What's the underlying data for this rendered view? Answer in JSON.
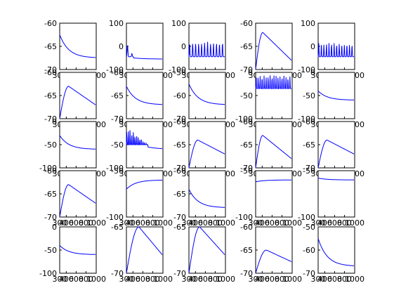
{
  "figure": {
    "background": "#ffffff",
    "line_color": "#0000ff",
    "rows": 5,
    "cols": 5
  },
  "chart_data": [
    {
      "type": "line",
      "shape": "decay",
      "params": [
        -62.5,
        -67.5
      ],
      "ylim": [
        -70,
        -60
      ],
      "yticks": [
        "-60",
        "-65",
        "-70"
      ]
    },
    {
      "type": "line",
      "shape": "spikes",
      "params": [
        -45,
        20,
        8,
        0.2
      ],
      "ylim": [
        -100,
        100
      ],
      "yticks": [
        "100",
        "0",
        "-100"
      ]
    },
    {
      "type": "line",
      "shape": "spikes",
      "params": [
        -45,
        20,
        12,
        0.0
      ],
      "ylim": [
        -100,
        100
      ],
      "yticks": [
        "100",
        "0",
        "-100"
      ]
    },
    {
      "type": "line",
      "shape": "hump",
      "params": [
        -70,
        -62,
        -68,
        0.2
      ],
      "ylim": [
        -70,
        -60
      ],
      "yticks": [
        "-60",
        "-65",
        "-70"
      ]
    },
    {
      "type": "line",
      "shape": "spikes",
      "params": [
        -45,
        15,
        14,
        0.0
      ],
      "ylim": [
        -100,
        100
      ],
      "yticks": [
        "100",
        "0",
        "-100"
      ]
    },
    {
      "type": "line",
      "shape": "hump",
      "params": [
        -70,
        -63,
        -67,
        0.25
      ],
      "ylim": [
        -70,
        -60
      ],
      "yticks": [
        "-60",
        "-65",
        "-70"
      ]
    },
    {
      "type": "line",
      "shape": "decay",
      "params": [
        -63,
        -67
      ],
      "ylim": [
        -70,
        -60
      ],
      "yticks": [
        "-60",
        "-65",
        "-70"
      ]
    },
    {
      "type": "line",
      "shape": "decay",
      "params": [
        -55,
        -64
      ],
      "ylim": [
        -70,
        -50
      ],
      "yticks": [
        "-50",
        "-60",
        "-70"
      ]
    },
    {
      "type": "line",
      "shape": "spikes",
      "params": [
        -35,
        -5,
        18,
        1.0
      ],
      "ylim": [
        -100,
        0
      ],
      "yticks": [
        "0",
        "-50",
        "-100"
      ]
    },
    {
      "type": "line",
      "shape": "decay",
      "params": [
        -40,
        -60
      ],
      "ylim": [
        -100,
        0
      ],
      "yticks": [
        "0",
        "-50",
        "-100"
      ]
    },
    {
      "type": "line",
      "shape": "decay",
      "params": [
        -30,
        -60
      ],
      "ylim": [
        -100,
        0
      ],
      "yticks": [
        "0",
        "-50",
        "-100"
      ]
    },
    {
      "type": "line",
      "shape": "spikes",
      "params": [
        -50,
        -10,
        22,
        0.6
      ],
      "ylim": [
        -100,
        0
      ],
      "yticks": [
        "0",
        "-50",
        "-100"
      ]
    },
    {
      "type": "line",
      "shape": "hump",
      "params": [
        -70,
        -64,
        -67,
        0.25
      ],
      "ylim": [
        -70,
        -60
      ],
      "yticks": [
        "-60",
        "-65",
        "-70"
      ]
    },
    {
      "type": "line",
      "shape": "hump",
      "params": [
        -70,
        -63,
        -68,
        0.2
      ],
      "ylim": [
        -70,
        -60
      ],
      "yticks": [
        "-60",
        "-65",
        "-70"
      ]
    },
    {
      "type": "line",
      "shape": "hump",
      "params": [
        -70,
        -64,
        -67,
        0.25
      ],
      "ylim": [
        -70,
        -60
      ],
      "yticks": [
        "-60",
        "-65",
        "-70"
      ]
    },
    {
      "type": "line",
      "shape": "hump",
      "params": [
        -70,
        -63,
        -67,
        0.25
      ],
      "ylim": [
        -70,
        -60
      ],
      "yticks": [
        "-60",
        "-65",
        "-70"
      ]
    },
    {
      "type": "line",
      "shape": "decay",
      "params": [
        -70,
        -60
      ],
      "ylim": [
        -100,
        -50
      ],
      "yticks": [
        "-50",
        "-100"
      ]
    },
    {
      "type": "line",
      "shape": "decay",
      "params": [
        -64,
        -68
      ],
      "ylim": [
        -70,
        -60
      ],
      "yticks": [
        "-60",
        "-65",
        "-70"
      ]
    },
    {
      "type": "line",
      "shape": "decay",
      "params": [
        -62,
        -60
      ],
      "ylim": [
        -100,
        -50
      ],
      "yticks": [
        "-50",
        "-100"
      ]
    },
    {
      "type": "line",
      "shape": "decay",
      "params": [
        -58,
        -60
      ],
      "ylim": [
        -100,
        -50
      ],
      "yticks": [
        "-50",
        "-100"
      ]
    },
    {
      "type": "line",
      "shape": "decay",
      "params": [
        -40,
        -60
      ],
      "ylim": [
        -100,
        0
      ],
      "yticks": [
        "0",
        "-50",
        "-100"
      ]
    },
    {
      "type": "line",
      "shape": "hump",
      "params": [
        -70,
        -65,
        -68,
        0.35
      ],
      "ylim": [
        -70,
        -65
      ],
      "yticks": [
        "-65",
        "-70"
      ]
    },
    {
      "type": "line",
      "shape": "hump",
      "params": [
        -70,
        -65,
        -68,
        0.3
      ],
      "ylim": [
        -70,
        -65
      ],
      "yticks": [
        "-65",
        "-70"
      ]
    },
    {
      "type": "line",
      "shape": "hump",
      "params": [
        -70,
        -65,
        -67.5,
        0.3
      ],
      "ylim": [
        -70,
        -60
      ],
      "yticks": [
        "-60",
        "-65",
        "-70"
      ]
    },
    {
      "type": "line",
      "shape": "decay",
      "params": [
        -55,
        -67
      ],
      "ylim": [
        -70,
        -50
      ],
      "yticks": [
        "-50",
        "-60",
        "-70"
      ]
    }
  ],
  "xticks": [
    "300",
    "400",
    "600",
    "800",
    "1000"
  ],
  "xlim": [
    300,
    1000
  ]
}
